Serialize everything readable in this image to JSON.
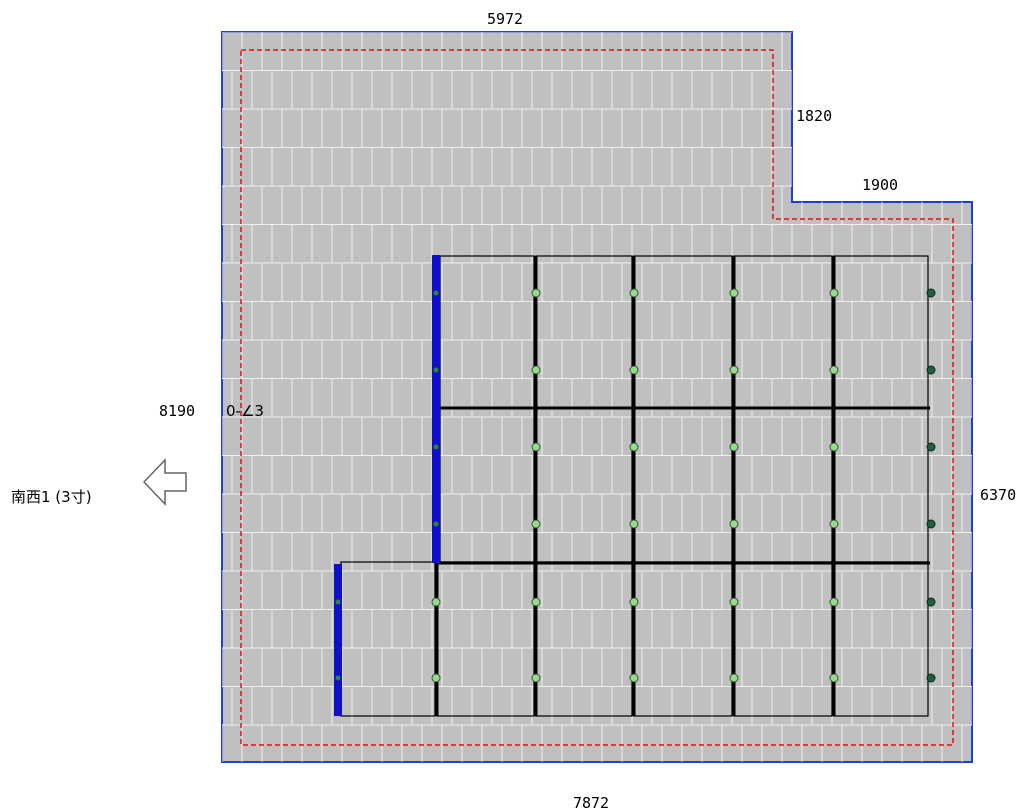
{
  "roof": {
    "dimensions": {
      "top": "5972",
      "notch_height": "1820",
      "notch_width": "1900",
      "left": "8190",
      "right": "6370",
      "bottom": "7872"
    },
    "slope_label": "0-∠3",
    "direction_label": "南西1 (3寸)"
  },
  "colors": {
    "roof_fill": "#c0c0c0",
    "roof_outline": "#1f3fd6",
    "setback_line": "#e01010",
    "panel_frame": "#000000",
    "rail_end": "#1010c8",
    "clamp_fill": "#98d890"
  },
  "panels": {
    "upper_rows": 2,
    "upper_columns": 5,
    "lower_rows": 1,
    "lower_columns": 6
  }
}
